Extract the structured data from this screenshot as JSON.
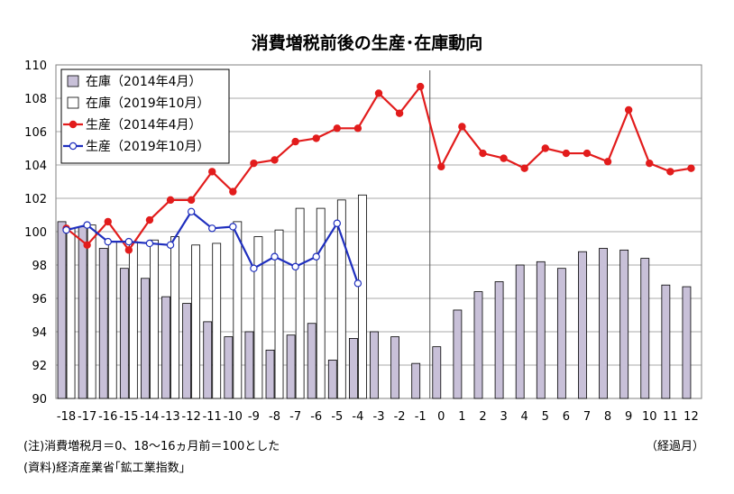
{
  "chart_data": {
    "type": "bar+line",
    "title": "消費増税前後の生産･在庫動向",
    "x_unit": "（経過月）",
    "categories": [
      "-18",
      "-17",
      "-16",
      "-15",
      "-14",
      "-13",
      "-12",
      "-11",
      "-10",
      "-9",
      "-8",
      "-7",
      "-6",
      "-5",
      "-4",
      "-3",
      "-2",
      "-1",
      "0",
      "1",
      "2",
      "3",
      "4",
      "5",
      "6",
      "7",
      "8",
      "9",
      "10",
      "11",
      "12"
    ],
    "ylim": [
      90,
      110
    ],
    "yticks": [
      90,
      92,
      94,
      96,
      98,
      100,
      102,
      104,
      106,
      108,
      110
    ],
    "grid": true,
    "legend_position": "top-left",
    "series": [
      {
        "name": "在庫（2014年4月）",
        "kind": "bar",
        "color": "#c8c0d8",
        "values": [
          100.6,
          100.3,
          99.0,
          97.8,
          97.2,
          96.1,
          95.7,
          94.6,
          93.7,
          94.0,
          92.9,
          93.8,
          94.5,
          92.3,
          93.6,
          94.0,
          93.7,
          92.1,
          93.1,
          95.3,
          96.4,
          97.0,
          98.0,
          98.2,
          97.8,
          98.8,
          99.0,
          98.9,
          98.4,
          96.8,
          96.7
        ]
      },
      {
        "name": "在庫（2019年10月）",
        "kind": "bar",
        "color": "#ffffff",
        "values": [
          100.2,
          100.4,
          99.4,
          99.4,
          99.5,
          99.7,
          99.2,
          99.3,
          100.6,
          99.7,
          100.1,
          101.4,
          101.4,
          101.9,
          102.2,
          null,
          null,
          null,
          null,
          null,
          null,
          null,
          null,
          null,
          null,
          null,
          null,
          null,
          null,
          null,
          null
        ]
      },
      {
        "name": "生産（2014年4月）",
        "kind": "line",
        "color": "#e21c1c",
        "values": [
          100.2,
          99.2,
          100.6,
          98.9,
          100.7,
          101.9,
          101.9,
          103.6,
          102.4,
          104.1,
          104.3,
          105.4,
          105.6,
          106.2,
          106.2,
          108.3,
          107.1,
          108.7,
          103.9,
          106.3,
          104.7,
          104.4,
          103.8,
          105.0,
          104.7,
          104.7,
          104.2,
          107.3,
          104.1,
          103.6,
          103.8
        ]
      },
      {
        "name": "生産（2019年10月）",
        "kind": "line",
        "color": "#1f2fbe",
        "values": [
          100.1,
          100.4,
          99.4,
          99.4,
          99.3,
          99.2,
          101.2,
          100.2,
          100.3,
          97.8,
          98.5,
          97.9,
          98.5,
          100.5,
          96.9,
          null,
          null,
          null,
          null,
          null,
          null,
          null,
          null,
          null,
          null,
          null,
          null,
          null,
          null,
          null,
          null
        ]
      }
    ]
  },
  "notes": {
    "line1": "(注)消費増税月＝0、18～16ヵ月前＝100とした",
    "line2": "(資料)経済産業省｢鉱工業指数｣"
  }
}
